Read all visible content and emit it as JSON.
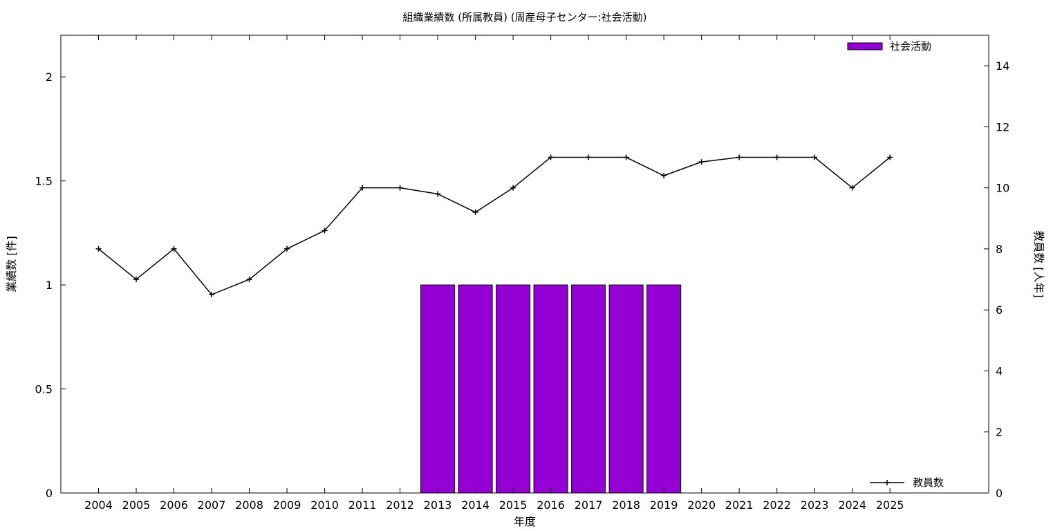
{
  "chart_data": {
    "type": "bar",
    "title": "組織業績数 (所属教員) (周産母子センター:社会活動)",
    "xlabel": "年度",
    "ylabel": "業績数 [件]",
    "y2label": "教員数 [人年]",
    "categories": [
      "2004",
      "2005",
      "2006",
      "2007",
      "2008",
      "2009",
      "2010",
      "2011",
      "2012",
      "2013",
      "2014",
      "2015",
      "2016",
      "2017",
      "2018",
      "2019",
      "2020",
      "2021",
      "2022",
      "2023",
      "2024",
      "2025"
    ],
    "xlim_categories": 24,
    "ylim": [
      0,
      2.2
    ],
    "y_ticks": [
      0,
      0.5,
      1,
      1.5,
      2
    ],
    "y_tick_labels": [
      "0",
      "0.5",
      "1",
      "1.5",
      "2"
    ],
    "y2lim": [
      0,
      15
    ],
    "y2_ticks": [
      0,
      2,
      4,
      6,
      8,
      10,
      12,
      14
    ],
    "y2_tick_labels": [
      "0",
      "2",
      "4",
      "6",
      "8",
      "10",
      "12",
      "14"
    ],
    "series": [
      {
        "name": "社会活動",
        "type": "bar",
        "axis": "left",
        "color": "#9400D3",
        "values": [
          0,
          0,
          0,
          0,
          0,
          0,
          0,
          0,
          0,
          1,
          1,
          1,
          1,
          1,
          1,
          1,
          0,
          0,
          0,
          0,
          0,
          0
        ]
      },
      {
        "name": "教員数",
        "type": "line",
        "axis": "right",
        "color": "#000000",
        "marker": "plus",
        "values": [
          8,
          7,
          8,
          6.5,
          7,
          8,
          8.6,
          10,
          10,
          9.8,
          9.2,
          10,
          11,
          11,
          11,
          10.4,
          10.85,
          11,
          11,
          11,
          10,
          11
        ]
      }
    ],
    "legend_bar_position": "top-right",
    "legend_line_position": "bottom-right",
    "grid": false
  }
}
